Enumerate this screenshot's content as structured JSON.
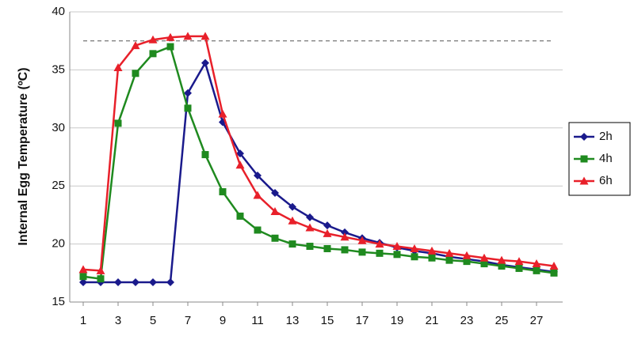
{
  "chart_data": {
    "type": "line",
    "y_label": "Internal Egg Temperature (ºC)",
    "x": [
      1,
      2,
      3,
      4,
      5,
      6,
      7,
      8,
      9,
      10,
      11,
      12,
      13,
      14,
      15,
      16,
      17,
      18,
      19,
      20,
      21,
      22,
      23,
      24,
      25,
      26,
      27,
      28
    ],
    "xlim": [
      0.5,
      28.5
    ],
    "xticks": [
      1,
      3,
      5,
      7,
      9,
      11,
      13,
      15,
      17,
      19,
      21,
      23,
      25,
      27
    ],
    "ylim": [
      15,
      40
    ],
    "yticks": [
      15,
      20,
      25,
      30,
      35,
      40
    ],
    "grid": true,
    "legend": "right",
    "reference_line": 37.5,
    "series": [
      {
        "name": "2h",
        "color": "#1a1a8c",
        "marker": "diamond",
        "values": [
          16.7,
          16.7,
          16.7,
          16.7,
          16.7,
          16.7,
          33.0,
          35.6,
          30.5,
          27.8,
          25.9,
          24.4,
          23.2,
          22.3,
          21.6,
          21.0,
          20.5,
          20.1,
          19.7,
          19.4,
          19.2,
          18.9,
          18.7,
          18.5,
          18.2,
          18.0,
          17.8,
          17.6
        ]
      },
      {
        "name": "4h",
        "color": "#1f8a1f",
        "marker": "square",
        "values": [
          17.2,
          17.0,
          30.4,
          34.7,
          36.4,
          37.0,
          31.7,
          27.7,
          24.5,
          22.4,
          21.2,
          20.5,
          20.0,
          19.8,
          19.6,
          19.5,
          19.3,
          19.2,
          19.1,
          18.9,
          18.8,
          18.6,
          18.5,
          18.3,
          18.1,
          17.9,
          17.7,
          17.5
        ]
      },
      {
        "name": "6h",
        "color": "#e8202a",
        "marker": "triangle",
        "values": [
          17.8,
          17.7,
          35.2,
          37.1,
          37.6,
          37.8,
          37.9,
          37.9,
          31.2,
          26.8,
          24.2,
          22.8,
          22.0,
          21.4,
          20.9,
          20.6,
          20.3,
          20.0,
          19.8,
          19.6,
          19.4,
          19.2,
          19.0,
          18.8,
          18.6,
          18.5,
          18.3,
          18.1
        ]
      }
    ]
  }
}
